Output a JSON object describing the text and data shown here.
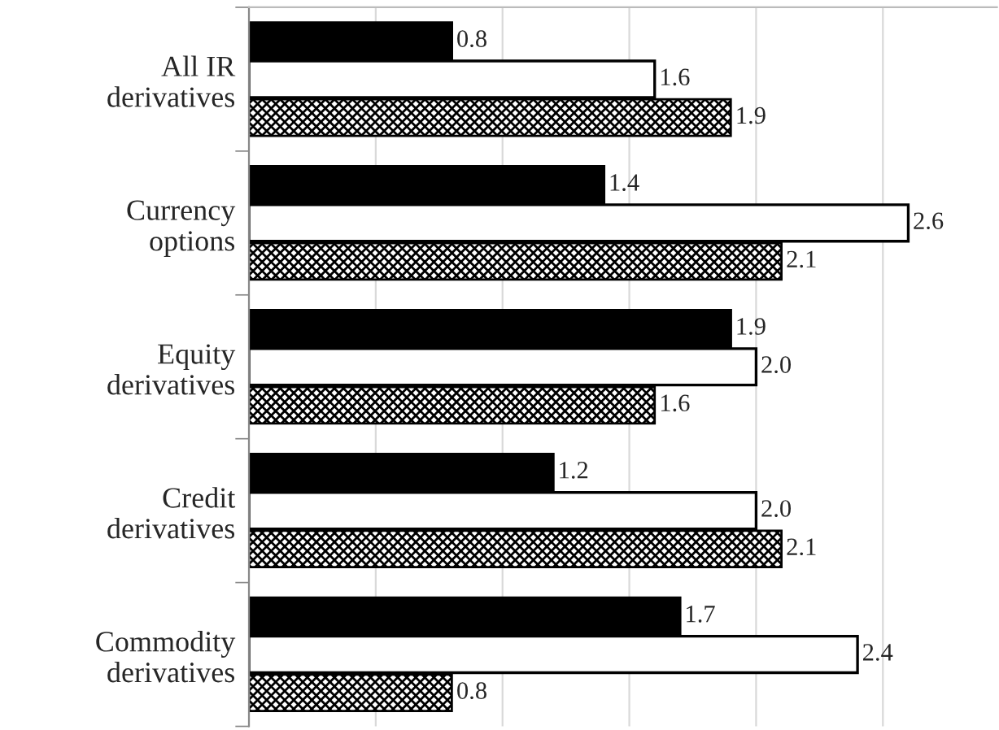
{
  "chart_data": {
    "type": "bar",
    "orientation": "horizontal",
    "categories": [
      "All IR\nderivatives",
      "Currency\noptions",
      "Equity\nderivatives",
      "Credit\nderivatives",
      "Commodity\nderivatives"
    ],
    "series": [
      {
        "color": "#000000",
        "values": [
          0.8,
          1.4,
          1.9,
          1.2,
          1.7
        ],
        "value_labels": [
          "0.8",
          "1.4",
          "1.9",
          "1.2",
          "1.7"
        ]
      },
      {
        "color": "#ffffff",
        "values": [
          1.6,
          2.6,
          2.0,
          2.0,
          2.4
        ],
        "value_labels": [
          "1.6",
          "2.6",
          "2.0",
          "2.0",
          "2.4"
        ]
      },
      {
        "color": "#000000",
        "values": [
          1.9,
          2.1,
          1.6,
          2.1,
          0.8
        ],
        "value_labels": [
          "1.9",
          "2.1",
          "1.6",
          "2.1",
          "0.8"
        ]
      }
    ],
    "xlim": [
      0,
      2.95
    ],
    "xticks": [
      {
        "value": 0,
        "label": null
      },
      {
        "value": 0.5,
        "label": null
      },
      {
        "value": 1.0,
        "label": null
      },
      {
        "value": 1.5,
        "label": null
      },
      {
        "value": 2.0,
        "label": null
      },
      {
        "value": 2.5,
        "label": null
      }
    ],
    "tick_labels": "y",
    "grid": "x",
    "legend": false
  }
}
